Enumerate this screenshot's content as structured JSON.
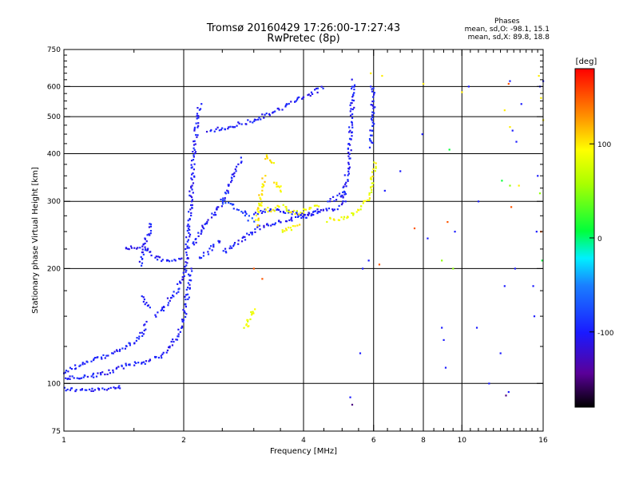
{
  "header": {
    "title": "Tromsø 20160429 17:26:00-17:27:43",
    "subtitle": "RwPretec (8p)"
  },
  "phase_stats": {
    "heading": "Phases",
    "line_o": "mean, sd,O: -98.1, 15.1",
    "line_x": "mean, sd,X:  89.8, 18.8"
  },
  "colorbar": {
    "unit_label": "[deg]",
    "ticks": [
      "100",
      "0",
      "-100"
    ],
    "tick_values": [
      100,
      0,
      -100
    ],
    "range": [
      -180,
      180
    ]
  },
  "chart_data": {
    "type": "scatter",
    "xlabel": "Frequency [MHz]",
    "ylabel": "Stationary phase Virtual Height [km]",
    "x_scale": "log",
    "y_scale": "log",
    "xlim": [
      1,
      16
    ],
    "ylim": [
      75,
      750
    ],
    "x_ticks": [
      1,
      2,
      4,
      6,
      8,
      10,
      16
    ],
    "x_tick_labels": [
      "1",
      "2",
      "4",
      "6",
      "8",
      "10",
      "16"
    ],
    "y_ticks": [
      75,
      100,
      200,
      300,
      400,
      500,
      600,
      750
    ],
    "y_tick_labels": [
      "75",
      "100",
      "200",
      "300",
      "400",
      "500",
      "600",
      "750"
    ],
    "grid": true,
    "traces": [
      {
        "phase": -100,
        "x": [
          1.0,
          1.08,
          1.2,
          1.32,
          1.4
        ],
        "y": [
          97,
          96,
          96,
          97,
          99
        ]
      },
      {
        "phase": -100,
        "x": [
          1.0,
          1.1,
          1.25,
          1.4,
          1.55,
          1.62
        ],
        "y": [
          107,
          112,
          117,
          123,
          132,
          145
        ]
      },
      {
        "phase": -100,
        "x": [
          1.58,
          1.6,
          1.62,
          1.64
        ],
        "y": [
          170,
          165,
          160,
          158
        ]
      },
      {
        "phase": -100,
        "x": [
          1.0,
          1.15,
          1.3,
          1.45,
          1.6,
          1.75,
          1.85,
          1.95,
          2.0,
          2.05,
          2.08
        ],
        "y": [
          103,
          104,
          107,
          112,
          114,
          118,
          125,
          135,
          150,
          175,
          200
        ]
      },
      {
        "phase": -100,
        "x": [
          1.7,
          1.75,
          1.8,
          1.85,
          1.9,
          1.95,
          2.0,
          2.03
        ],
        "y": [
          150,
          155,
          160,
          167,
          172,
          180,
          190,
          200
        ]
      },
      {
        "phase": -100,
        "x": [
          1.42,
          1.5,
          1.6,
          1.7,
          1.8,
          1.9,
          2.0
        ],
        "y": [
          225,
          228,
          226,
          214,
          210,
          210,
          212
        ]
      },
      {
        "phase": -100,
        "x": [
          1.55,
          1.58,
          1.6,
          1.63,
          1.66
        ],
        "y": [
          205,
          215,
          232,
          248,
          265
        ]
      },
      {
        "phase": -100,
        "x": [
          2.02,
          2.05,
          2.08,
          2.1,
          2.12,
          2.15,
          2.18,
          2.2
        ],
        "y": [
          200,
          240,
          290,
          340,
          400,
          460,
          510,
          540
        ]
      },
      {
        "phase": -100,
        "x": [
          2.1,
          2.2,
          2.3,
          2.4,
          2.5,
          2.6,
          2.7,
          2.8
        ],
        "y": [
          230,
          250,
          265,
          280,
          300,
          330,
          360,
          390
        ]
      },
      {
        "phase": -100,
        "x": [
          2.3,
          2.5,
          2.7,
          2.9,
          3.1,
          3.3,
          3.5,
          3.7,
          3.9,
          4.1,
          4.3,
          4.5
        ],
        "y": [
          460,
          465,
          475,
          485,
          495,
          510,
          525,
          540,
          555,
          570,
          585,
          598
        ]
      },
      {
        "phase": -100,
        "x": [
          2.5,
          2.7,
          2.9,
          3.1,
          3.3,
          3.5,
          3.8,
          4.1,
          4.4,
          4.7,
          5.0
        ],
        "y": [
          220,
          233,
          245,
          255,
          262,
          266,
          270,
          275,
          282,
          287,
          292
        ]
      },
      {
        "phase": -100,
        "x": [
          3.0,
          3.2,
          3.4,
          3.6,
          3.8,
          4.0,
          4.2,
          4.4
        ],
        "y": [
          280,
          283,
          285,
          282,
          278,
          276,
          280,
          285
        ]
      },
      {
        "phase": -100,
        "x": [
          5.0,
          5.1,
          5.2,
          5.25,
          5.3,
          5.35
        ],
        "y": [
          300,
          330,
          380,
          450,
          540,
          625
        ]
      },
      {
        "phase": -100,
        "x": [
          4.6,
          4.8,
          5.0,
          5.2
        ],
        "y": [
          300,
          305,
          312,
          318
        ]
      },
      {
        "phase": -100,
        "x": [
          2.2,
          2.3,
          2.4,
          2.5
        ],
        "y": [
          212,
          222,
          232,
          240
        ]
      },
      {
        "phase": -80,
        "x": [
          2.5,
          2.6,
          2.7,
          2.8,
          2.9,
          3.0
        ],
        "y": [
          300,
          295,
          290,
          282,
          272,
          265
        ]
      },
      {
        "phase": 90,
        "x": [
          3.1,
          3.2,
          3.3,
          3.4,
          3.5,
          3.6,
          3.7,
          3.8,
          3.9,
          4.0,
          4.2,
          4.4
        ],
        "y": [
          292,
          288,
          283,
          287,
          293,
          290,
          285,
          282,
          280,
          286,
          290,
          292
        ]
      },
      {
        "phase": 90,
        "x": [
          3.5,
          3.6,
          3.7,
          3.8,
          3.9
        ],
        "y": [
          250,
          252,
          255,
          258,
          262
        ]
      },
      {
        "phase": 90,
        "x": [
          4.6,
          5.0,
          5.3,
          5.6,
          5.8,
          5.9,
          5.95,
          6.0,
          6.05
        ],
        "y": [
          268,
          272,
          278,
          290,
          305,
          325,
          345,
          365,
          385
        ]
      },
      {
        "phase": 100,
        "x": [
          3.05,
          3.08,
          3.12,
          3.15,
          3.2
        ],
        "y": [
          260,
          285,
          310,
          330,
          350
        ]
      },
      {
        "phase": 100,
        "x": [
          3.4,
          3.45,
          3.5,
          3.55
        ],
        "y": [
          335,
          330,
          325,
          320
        ]
      },
      {
        "phase": 100,
        "x": [
          3.2,
          3.25,
          3.3,
          3.35
        ],
        "y": [
          395,
          390,
          385,
          380
        ]
      },
      {
        "phase": 90,
        "x": [
          2.85,
          2.88,
          2.9,
          2.93,
          2.96,
          3.0
        ],
        "y": [
          140,
          143,
          147,
          150,
          154,
          158
        ]
      },
      {
        "phase": -95,
        "x": [
          5.9,
          5.92,
          5.95,
          5.97,
          5.99,
          6.0
        ],
        "y": [
          420,
          450,
          480,
          520,
          560,
          600
        ]
      }
    ],
    "points": [
      {
        "phase": -100,
        "x": [
          5.55,
          5.63,
          5.83,
          5.24,
          5.1,
          5.9,
          6.4,
          7.0,
          7.95,
          8.2,
          8.9,
          9.1,
          9.6,
          10.4,
          10.9,
          11.7,
          12.5,
          13.1,
          13.4,
          13.7,
          14.1,
          15.1,
          15.5,
          15.7,
          16.0,
          9.0,
          11.0,
          12.8,
          13.6,
          15.2,
          13.2,
          15.4
        ],
        "y": [
          120,
          200,
          210,
          92,
          300,
          600,
          320,
          360,
          450,
          240,
          140,
          110,
          250,
          600,
          140,
          100,
          120,
          95,
          460,
          430,
          540,
          180,
          350,
          600,
          620,
          130,
          300,
          180,
          200,
          150,
          620,
          250
        ]
      },
      {
        "phase": 100,
        "x": [
          5.9,
          6.3,
          8.0,
          10.0,
          12.8,
          13.2,
          13.9,
          15.6,
          15.8,
          16.0
        ],
        "y": [
          650,
          640,
          610,
          580,
          520,
          470,
          330,
          640,
          560,
          490
        ]
      },
      {
        "phase": 150,
        "x": [
          3.0,
          3.15,
          6.2,
          7.6,
          9.2,
          13.3,
          13.1,
          15.8
        ],
        "y": [
          200,
          188,
          205,
          255,
          265,
          290,
          610,
          250
        ]
      },
      {
        "phase": 50,
        "x": [
          8.9,
          9.5,
          13.2,
          15.7
        ],
        "y": [
          210,
          200,
          330,
          315
        ]
      },
      {
        "phase": 10,
        "x": [
          9.3,
          12.6,
          15.9
        ],
        "y": [
          410,
          340,
          210
        ]
      },
      {
        "phase": -150,
        "x": [
          5.3,
          12.9
        ],
        "y": [
          88,
          93
        ]
      }
    ]
  }
}
